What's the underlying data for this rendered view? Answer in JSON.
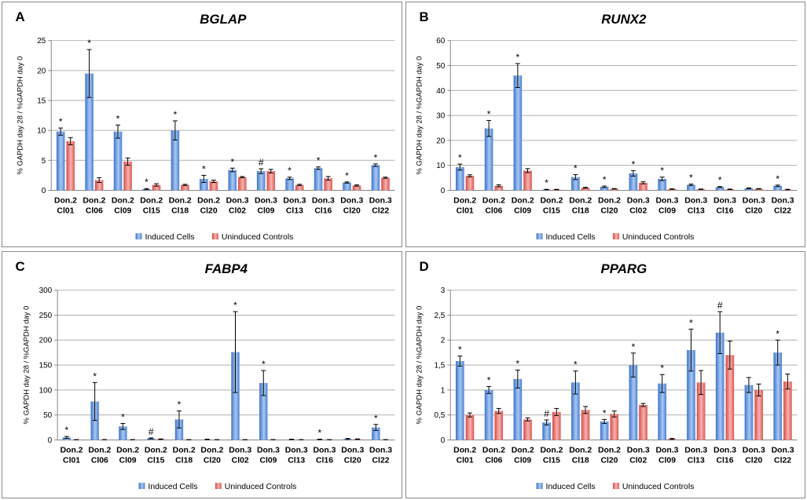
{
  "chart_data": [
    {
      "type": "bar",
      "panel": "A",
      "title": "BGLAP",
      "ylabel": "% GAPDH day 28 / %GAPDH day 0",
      "ylim": [
        0,
        25
      ],
      "yticks": [
        "0",
        "5",
        "10",
        "15",
        "20",
        "25"
      ],
      "grid": true,
      "legend": "bottom",
      "categories": [
        [
          "Don.2",
          "Cl01"
        ],
        [
          "Don.2",
          "Cl06"
        ],
        [
          "Don.2",
          "Cl09"
        ],
        [
          "Don.2",
          "Cl15"
        ],
        [
          "Don.2",
          "Cl18"
        ],
        [
          "Don.2",
          "Cl20"
        ],
        [
          "Don.3",
          "Cl02"
        ],
        [
          "Don.3",
          "Cl09"
        ],
        [
          "Don.3",
          "Cl13"
        ],
        [
          "Don.3",
          "Cl16"
        ],
        [
          "Don.3",
          "Cl20"
        ],
        [
          "Don.3",
          "Cl22"
        ]
      ],
      "series": [
        {
          "name": "Induced Cells",
          "color": "#5b8fd6",
          "values": [
            9.8,
            19.5,
            9.8,
            0.2,
            10.0,
            1.9,
            3.4,
            3.2,
            2.0,
            3.7,
            1.3,
            4.2
          ],
          "errors": [
            0.6,
            4.0,
            1.1,
            0.1,
            1.6,
            0.6,
            0.3,
            0.4,
            0.2,
            0.2,
            0.1,
            0.2
          ]
        },
        {
          "name": "Uninduced Controls",
          "color": "#e66a66",
          "values": [
            8.2,
            1.7,
            4.8,
            0.9,
            0.9,
            1.5,
            2.2,
            3.2,
            0.9,
            2.0,
            0.8,
            2.1
          ],
          "errors": [
            0.6,
            0.4,
            0.6,
            0.2,
            0.1,
            0.2,
            0.1,
            0.3,
            0.1,
            0.3,
            0.1,
            0.1
          ]
        }
      ],
      "markers": [
        "*",
        "*",
        "*",
        "*",
        "*",
        "*",
        "*",
        "#",
        "*",
        "*",
        "*",
        "*"
      ]
    },
    {
      "type": "bar",
      "panel": "B",
      "title": "RUNX2",
      "ylabel": "% GAPDH day 28 / %GAPDH day 0",
      "ylim": [
        0,
        60
      ],
      "yticks": [
        "0",
        "10",
        "20",
        "30",
        "40",
        "50",
        "60"
      ],
      "grid": true,
      "legend": "bottom",
      "categories": [
        [
          "Don.2",
          "Cl01"
        ],
        [
          "Don.2",
          "Cl06"
        ],
        [
          "Don.2",
          "Cl09"
        ],
        [
          "Don.2",
          "Cl15"
        ],
        [
          "Don.2",
          "Cl18"
        ],
        [
          "Don.2",
          "Cl20"
        ],
        [
          "Don.3",
          "Cl02"
        ],
        [
          "Don.3",
          "Cl09"
        ],
        [
          "Don.3",
          "Cl13"
        ],
        [
          "Don.3",
          "Cl16"
        ],
        [
          "Don.3",
          "Cl20"
        ],
        [
          "Don.3",
          "Cl22"
        ]
      ],
      "series": [
        {
          "name": "Induced Cells",
          "color": "#5b8fd6",
          "values": [
            9.3,
            24.8,
            46.0,
            0.3,
            5.3,
            1.4,
            6.8,
            4.6,
            2.2,
            1.3,
            0.8,
            1.8
          ],
          "errors": [
            1.2,
            3.2,
            4.8,
            0.1,
            1.0,
            0.3,
            1.1,
            0.7,
            0.3,
            0.2,
            0.2,
            0.3
          ]
        },
        {
          "name": "Uninduced Controls",
          "color": "#e66a66",
          "values": [
            5.8,
            1.8,
            7.9,
            0.3,
            1.0,
            0.6,
            3.0,
            0.5,
            0.4,
            0.4,
            0.6,
            0.3
          ],
          "errors": [
            0.4,
            0.4,
            0.8,
            0.1,
            0.2,
            0.1,
            0.4,
            0.1,
            0.1,
            0.1,
            0.1,
            0.1
          ]
        }
      ],
      "markers": [
        "*",
        "*",
        "*",
        "*",
        "*",
        "*",
        "*",
        "*",
        "*",
        "*",
        "",
        "*"
      ]
    },
    {
      "type": "bar",
      "panel": "C",
      "title": "FABP4",
      "ylabel": "% GAPDH day 28 / %GAPDH day 0",
      "ylim": [
        0,
        300
      ],
      "yticks": [
        "0",
        "50",
        "100",
        "150",
        "200",
        "250",
        "300"
      ],
      "grid": true,
      "legend": "bottom",
      "categories": [
        [
          "Don.2",
          "Cl01"
        ],
        [
          "Don.2",
          "Cl06"
        ],
        [
          "Don.2",
          "Cl09"
        ],
        [
          "Don.2",
          "Cl15"
        ],
        [
          "Don.2",
          "Cl18"
        ],
        [
          "Don.2",
          "Cl20"
        ],
        [
          "Don.3",
          "Cl02"
        ],
        [
          "Don.3",
          "Cl09"
        ],
        [
          "Don.3",
          "Cl13"
        ],
        [
          "Don.3",
          "Cl16"
        ],
        [
          "Don.3",
          "Cl20"
        ],
        [
          "Don.3",
          "Cl22"
        ]
      ],
      "series": [
        {
          "name": "Induced Cells",
          "color": "#5b8fd6",
          "values": [
            5,
            77,
            27,
            3,
            41,
            1,
            176,
            114,
            1,
            1,
            2,
            25
          ],
          "errors": [
            2,
            38,
            6,
            1,
            17,
            0.5,
            81,
            25,
            0.5,
            0.5,
            1,
            6
          ]
        },
        {
          "name": "Uninduced Controls",
          "color": "#e66a66",
          "values": [
            0.5,
            0.5,
            0.5,
            1.5,
            0.5,
            0.5,
            0.5,
            0.5,
            0.5,
            0.5,
            1.5,
            0.5
          ],
          "errors": [
            0.2,
            0.2,
            0.2,
            0.5,
            0.2,
            0.2,
            0.2,
            0.2,
            0.2,
            0.2,
            0.5,
            0.2
          ]
        }
      ],
      "markers": [
        "*",
        "*",
        "*",
        "#",
        "*",
        "",
        "*",
        "*",
        "",
        "*",
        "",
        "*"
      ]
    },
    {
      "type": "bar",
      "panel": "D",
      "title": "PPARG",
      "ylabel": "% GAPDH day 28 / %GAPDH day 0",
      "ylim": [
        0,
        3
      ],
      "yticks": [
        "0",
        "0,5",
        "1",
        "1,5",
        "2",
        "2,5",
        "3"
      ],
      "grid": true,
      "legend": "bottom",
      "categories": [
        [
          "Don.2",
          "Cl01"
        ],
        [
          "Don.2",
          "Cl06"
        ],
        [
          "Don.2",
          "Cl09"
        ],
        [
          "Don.2",
          "Cl15"
        ],
        [
          "Don.2",
          "Cl18"
        ],
        [
          "Don.2",
          "Cl20"
        ],
        [
          "Don.3",
          "Cl02"
        ],
        [
          "Don.3",
          "Cl09"
        ],
        [
          "Don.3",
          "Cl13"
        ],
        [
          "Don.3",
          "Cl16"
        ],
        [
          "Don.3",
          "Cl20"
        ],
        [
          "Don.3",
          "Cl22"
        ]
      ],
      "series": [
        {
          "name": "Induced Cells",
          "color": "#5b8fd6",
          "values": [
            1.58,
            1.0,
            1.22,
            0.35,
            1.15,
            0.37,
            1.5,
            1.13,
            1.8,
            2.15,
            1.1,
            1.75
          ],
          "errors": [
            0.1,
            0.07,
            0.18,
            0.05,
            0.23,
            0.04,
            0.24,
            0.18,
            0.42,
            0.42,
            0.15,
            0.25
          ]
        },
        {
          "name": "Uninduced Controls",
          "color": "#e66a66",
          "values": [
            0.5,
            0.58,
            0.41,
            0.56,
            0.6,
            0.52,
            0.7,
            0.02,
            1.15,
            1.7,
            1.0,
            1.17
          ],
          "errors": [
            0.04,
            0.05,
            0.03,
            0.07,
            0.07,
            0.06,
            0.03,
            0.01,
            0.24,
            0.28,
            0.12,
            0.15
          ]
        }
      ],
      "markers": [
        "*",
        "*",
        "*",
        "#",
        "*",
        "*",
        "*",
        "*",
        "*",
        "#",
        "",
        "*"
      ]
    }
  ]
}
